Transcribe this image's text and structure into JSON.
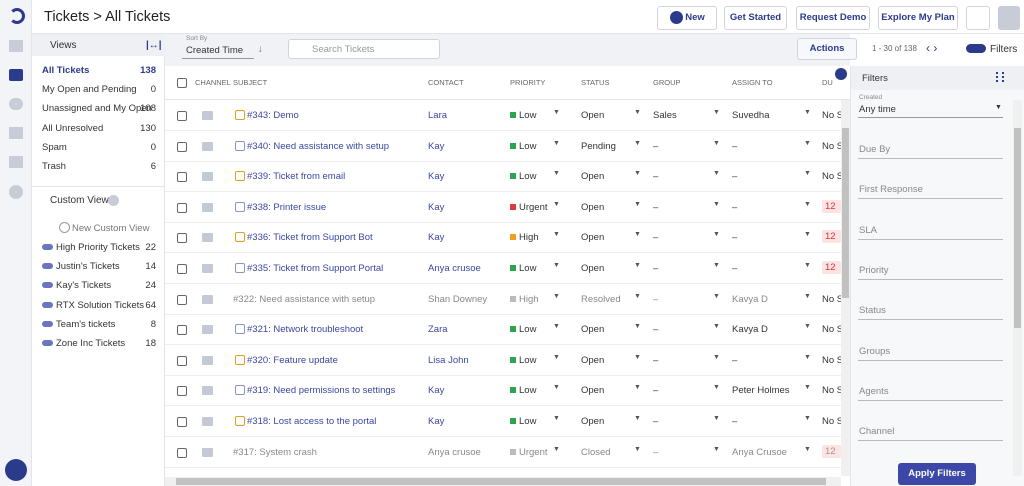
{
  "header": {
    "title": "Tickets > All Tickets",
    "buttons": [
      "New",
      "Get Started",
      "Request Demo",
      "Explore My Plan"
    ]
  },
  "views": {
    "heading": "Views",
    "items": [
      {
        "name": "All Tickets",
        "count": 138
      },
      {
        "name": "My Open and Pending",
        "count": 0
      },
      {
        "name": "Unassigned and My Open",
        "count": 108
      },
      {
        "name": "All Unresolved",
        "count": 130
      },
      {
        "name": "Spam",
        "count": 0
      },
      {
        "name": "Trash",
        "count": 6
      }
    ],
    "custom_heading": "Custom Views",
    "new_custom": "New Custom View",
    "custom_items": [
      {
        "name": "High Priority Tickets",
        "count": 22
      },
      {
        "name": "Justin's Tickets",
        "count": 14
      },
      {
        "name": "Kay's Tickets",
        "count": 24
      },
      {
        "name": "RTX Solution Tickets",
        "count": 64
      },
      {
        "name": "Team's tickets",
        "count": 8
      },
      {
        "name": "Zone Inc Tickets",
        "count": 18
      }
    ]
  },
  "toolbar": {
    "sort_label": "Sort By",
    "sort_value": "Created Time",
    "search_placeholder": "Search Tickets",
    "actions": "Actions",
    "pagination": "1 - 30 of 138",
    "filters_toggle": "Filters"
  },
  "table": {
    "columns": [
      "CHANNEL",
      "SUBJECT",
      "CONTACT",
      "PRIORITY",
      "STATUS",
      "GROUP",
      "ASSIGN TO",
      "DU"
    ],
    "rows": [
      [
        "#343: Demo",
        "Lara",
        "Low",
        "Open",
        "Sales",
        "Suvedha",
        "No S"
      ],
      [
        "#340: Need assistance with setup",
        "Kay",
        "Low",
        "Pending",
        "–",
        "–",
        "No S"
      ],
      [
        "#339: Ticket from email",
        "Kay",
        "Low",
        "Open",
        "–",
        "–",
        "No S"
      ],
      [
        "#338: Printer issue",
        "Kay",
        "Urgent",
        "Open",
        "–",
        "–",
        "12"
      ],
      [
        "#336: Ticket from Support Bot",
        "Kay",
        "High",
        "Open",
        "–",
        "–",
        "12"
      ],
      [
        "#335: Ticket from Support Portal",
        "Anya crusoe",
        "Low",
        "Open",
        "–",
        "–",
        "12"
      ],
      [
        "#322: Need assistance with setup",
        "Shan Downey",
        "High",
        "Resolved",
        "–",
        "Kavya D",
        "No S"
      ],
      [
        "#321: Network troubleshoot",
        "Zara",
        "Low",
        "Open",
        "–",
        "Kavya D",
        "No S"
      ],
      [
        "#320: Feature update",
        "Lisa John",
        "Low",
        "Open",
        "–",
        "–",
        "No S"
      ],
      [
        "#319: Need permissions to settings",
        "Kay",
        "Low",
        "Open",
        "–",
        "Peter Holmes",
        "No S"
      ],
      [
        "#318: Lost access to the portal",
        "Kay",
        "Low",
        "Open",
        "–",
        "–",
        "No S"
      ],
      [
        "#317: System crash",
        "Anya crusoe",
        "Urgent",
        "Closed",
        "–",
        "Anya Crusoe",
        "12"
      ]
    ]
  },
  "filters": {
    "title": "Filters",
    "created_label": "Created",
    "created_value": "Any time",
    "fields": [
      "Due By",
      "First Response",
      "SLA",
      "Priority",
      "Status",
      "Groups",
      "Agents",
      "Channel"
    ],
    "apply": "Apply Filters"
  }
}
